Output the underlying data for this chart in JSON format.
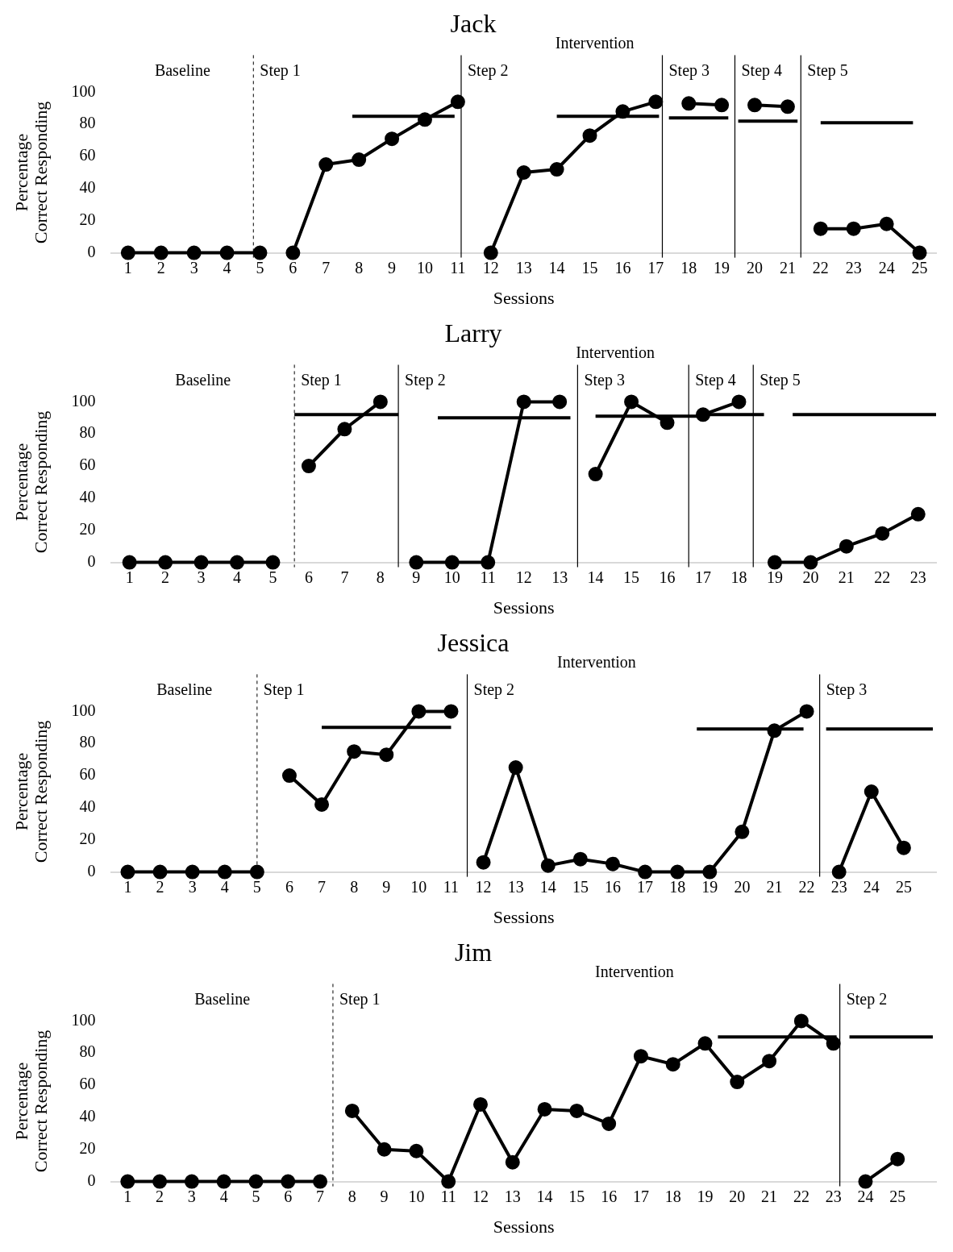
{
  "chart_data": [
    {
      "type": "line",
      "title": "Jack",
      "xlabel": "Sessions",
      "ylabel": "Percentage Correct Responding",
      "xlim": [
        0.5,
        25.5
      ],
      "xticks": [
        1,
        2,
        3,
        4,
        5,
        6,
        7,
        8,
        9,
        10,
        11,
        12,
        13,
        14,
        15,
        16,
        17,
        18,
        19,
        20,
        21,
        22,
        23,
        24,
        25
      ],
      "ylim": [
        0,
        100
      ],
      "yticks": [
        0,
        20,
        40,
        60,
        80,
        100
      ],
      "grid": false,
      "legend": false,
      "marker": "circle",
      "line_style": "solid",
      "series": [
        {
          "color": "#000000",
          "x": [
            1,
            2,
            3,
            4,
            5
          ],
          "values": [
            0,
            0,
            0,
            0,
            0
          ]
        },
        {
          "color": "#000000",
          "x": [
            6,
            7,
            8,
            9,
            10,
            11
          ],
          "values": [
            0,
            55,
            58,
            71,
            83,
            94
          ]
        },
        {
          "color": "#000000",
          "x": [
            12,
            13,
            14,
            15,
            16,
            17
          ],
          "values": [
            0,
            50,
            52,
            73,
            88,
            94
          ]
        },
        {
          "color": "#000000",
          "x": [
            18,
            19
          ],
          "values": [
            93,
            92
          ]
        },
        {
          "color": "#000000",
          "x": [
            20,
            21
          ],
          "values": [
            92,
            91
          ]
        },
        {
          "color": "#000000",
          "x": [
            22,
            23,
            24,
            25
          ],
          "values": [
            15,
            15,
            18,
            0
          ]
        },
        {
          "color": "#000000",
          "marker": "none",
          "x": [
            7.8,
            10.9
          ],
          "values": [
            85,
            85
          ]
        },
        {
          "color": "#000000",
          "marker": "none",
          "x": [
            14,
            17.1
          ],
          "values": [
            85,
            85
          ]
        },
        {
          "color": "#000000",
          "marker": "none",
          "x": [
            17.4,
            19.2
          ],
          "values": [
            84,
            84
          ]
        },
        {
          "color": "#000000",
          "marker": "none",
          "x": [
            19.5,
            21.3
          ],
          "values": [
            82,
            82
          ]
        },
        {
          "color": "#000000",
          "marker": "none",
          "x": [
            22,
            24.8
          ],
          "values": [
            81,
            81
          ]
        }
      ],
      "ref_lines": [
        {
          "axis": "x",
          "value": 4.8,
          "line_style": "dashed",
          "color": "#000000",
          "label": "Step 1"
        },
        {
          "axis": "x",
          "value": 11.1,
          "line_style": "solid",
          "color": "#000000",
          "label": "Step 2"
        },
        {
          "axis": "x",
          "value": 17.2,
          "line_style": "solid",
          "color": "#000000",
          "label": "Step 3"
        },
        {
          "axis": "x",
          "value": 19.4,
          "line_style": "solid",
          "color": "#000000",
          "label": "Step 4"
        },
        {
          "axis": "x",
          "value": 21.4,
          "line_style": "solid",
          "color": "#000000",
          "label": "Step 5"
        }
      ],
      "annotations": [
        "Baseline",
        "Intervention"
      ]
    },
    {
      "type": "line",
      "title": "Larry",
      "xlabel": "Sessions",
      "ylabel": "Percentage Correct Responding",
      "xlim": [
        0.5,
        23.5
      ],
      "xticks": [
        1,
        2,
        3,
        4,
        5,
        6,
        7,
        8,
        9,
        10,
        11,
        12,
        13,
        14,
        15,
        16,
        17,
        18,
        19,
        20,
        21,
        22,
        23
      ],
      "ylim": [
        0,
        100
      ],
      "yticks": [
        0,
        20,
        40,
        60,
        80,
        100
      ],
      "grid": false,
      "legend": false,
      "marker": "circle",
      "line_style": "solid",
      "series": [
        {
          "color": "#000000",
          "x": [
            1,
            2,
            3,
            4,
            5
          ],
          "values": [
            0,
            0,
            0,
            0,
            0
          ]
        },
        {
          "color": "#000000",
          "x": [
            6,
            7,
            8
          ],
          "values": [
            60,
            83,
            100
          ]
        },
        {
          "color": "#000000",
          "x": [
            9,
            10,
            11,
            12,
            13
          ],
          "values": [
            0,
            0,
            0,
            100,
            100
          ]
        },
        {
          "color": "#000000",
          "x": [
            14,
            15,
            16
          ],
          "values": [
            55,
            100,
            87
          ]
        },
        {
          "color": "#000000",
          "x": [
            17,
            18
          ],
          "values": [
            92,
            100
          ]
        },
        {
          "color": "#000000",
          "x": [
            19,
            20,
            21,
            22,
            23
          ],
          "values": [
            0,
            0,
            10,
            18,
            30
          ]
        },
        {
          "color": "#000000",
          "marker": "none",
          "x": [
            5.6,
            8.5
          ],
          "values": [
            92,
            92
          ]
        },
        {
          "color": "#000000",
          "marker": "none",
          "x": [
            9.6,
            13.3
          ],
          "values": [
            90,
            90
          ]
        },
        {
          "color": "#000000",
          "marker": "none",
          "x": [
            14,
            16.9
          ],
          "values": [
            91,
            91
          ]
        },
        {
          "color": "#000000",
          "marker": "none",
          "x": [
            17.1,
            18.7
          ],
          "values": [
            92,
            92
          ]
        },
        {
          "color": "#000000",
          "marker": "none",
          "x": [
            19.5,
            23.5
          ],
          "values": [
            92,
            92
          ]
        }
      ],
      "ref_lines": [
        {
          "axis": "x",
          "value": 5.6,
          "line_style": "dashed",
          "color": "#000000",
          "label": "Step 1"
        },
        {
          "axis": "x",
          "value": 8.5,
          "line_style": "solid",
          "color": "#000000",
          "label": "Step 2"
        },
        {
          "axis": "x",
          "value": 13.5,
          "line_style": "solid",
          "color": "#000000",
          "label": "Step 3"
        },
        {
          "axis": "x",
          "value": 16.6,
          "line_style": "solid",
          "color": "#000000",
          "label": "Step 4"
        },
        {
          "axis": "x",
          "value": 18.4,
          "line_style": "solid",
          "color": "#000000",
          "label": "Step 5"
        }
      ],
      "annotations": [
        "Baseline",
        "Intervention"
      ]
    },
    {
      "type": "line",
      "title": "Jessica",
      "xlabel": "Sessions",
      "ylabel": "Percentage Correct Responding",
      "xlim": [
        0.5,
        26
      ],
      "xticks": [
        1,
        2,
        3,
        4,
        5,
        6,
        7,
        8,
        9,
        10,
        11,
        12,
        13,
        14,
        15,
        16,
        17,
        18,
        19,
        20,
        21,
        22,
        23,
        24,
        25
      ],
      "ylim": [
        0,
        100
      ],
      "yticks": [
        0,
        20,
        40,
        60,
        80,
        100
      ],
      "grid": false,
      "legend": false,
      "marker": "circle",
      "line_style": "solid",
      "series": [
        {
          "color": "#000000",
          "x": [
            1,
            2,
            3,
            4,
            5
          ],
          "values": [
            0,
            0,
            0,
            0,
            0
          ]
        },
        {
          "color": "#000000",
          "x": [
            6,
            7,
            8,
            9,
            10,
            11
          ],
          "values": [
            60,
            42,
            75,
            73,
            100,
            100
          ]
        },
        {
          "color": "#000000",
          "x": [
            12,
            13,
            14,
            15,
            16,
            17,
            18,
            19,
            20,
            21,
            22
          ],
          "values": [
            6,
            65,
            4,
            8,
            5,
            0,
            0,
            0,
            25,
            88,
            100
          ]
        },
        {
          "color": "#000000",
          "x": [
            23,
            24,
            25
          ],
          "values": [
            0,
            50,
            15
          ]
        },
        {
          "color": "#000000",
          "marker": "none",
          "x": [
            7,
            11
          ],
          "values": [
            90,
            90
          ]
        },
        {
          "color": "#000000",
          "marker": "none",
          "x": [
            18.6,
            21.9
          ],
          "values": [
            89,
            89
          ]
        },
        {
          "color": "#000000",
          "marker": "none",
          "x": [
            22.6,
            25.9
          ],
          "values": [
            89,
            89
          ]
        }
      ],
      "ref_lines": [
        {
          "axis": "x",
          "value": 5,
          "line_style": "dashed",
          "color": "#000000",
          "label": "Step 1"
        },
        {
          "axis": "x",
          "value": 11.5,
          "line_style": "solid",
          "color": "#000000",
          "label": "Step 2"
        },
        {
          "axis": "x",
          "value": 22.4,
          "line_style": "solid",
          "color": "#000000",
          "label": "Step 3"
        }
      ],
      "annotations": [
        "Baseline",
        "Intervention"
      ]
    },
    {
      "type": "line",
      "title": "Jim",
      "xlabel": "Sessions",
      "ylabel": "Percentage Correct Responding",
      "xlim": [
        0.5,
        26.2
      ],
      "xticks": [
        1,
        2,
        3,
        4,
        5,
        6,
        7,
        8,
        9,
        10,
        11,
        12,
        13,
        14,
        15,
        16,
        17,
        18,
        19,
        20,
        21,
        22,
        23,
        24,
        25
      ],
      "ylim": [
        0,
        100
      ],
      "yticks": [
        0,
        20,
        40,
        60,
        80,
        100
      ],
      "grid": false,
      "legend": false,
      "marker": "circle",
      "line_style": "solid",
      "series": [
        {
          "color": "#000000",
          "x": [
            1,
            2,
            3,
            4,
            5,
            6,
            7
          ],
          "values": [
            0,
            0,
            0,
            0,
            0,
            0,
            0
          ]
        },
        {
          "color": "#000000",
          "x": [
            8,
            9,
            10,
            11,
            12,
            13,
            14,
            15,
            16,
            17,
            18,
            19,
            20,
            21,
            22,
            23
          ],
          "values": [
            44,
            20,
            19,
            0,
            48,
            12,
            45,
            44,
            36,
            78,
            73,
            86,
            62,
            75,
            100,
            86
          ]
        },
        {
          "color": "#000000",
          "x": [
            24,
            25
          ],
          "values": [
            0,
            14
          ]
        },
        {
          "color": "#000000",
          "marker": "none",
          "x": [
            19.4,
            23.1
          ],
          "values": [
            90,
            90
          ]
        },
        {
          "color": "#000000",
          "marker": "none",
          "x": [
            23.5,
            26.1
          ],
          "values": [
            90,
            90
          ]
        }
      ],
      "ref_lines": [
        {
          "axis": "x",
          "value": 7.4,
          "line_style": "dashed",
          "color": "#000000",
          "label": "Step 1"
        },
        {
          "axis": "x",
          "value": 23.2,
          "line_style": "solid",
          "color": "#000000",
          "label": "Step 2"
        }
      ],
      "annotations": [
        "Baseline",
        "Intervention"
      ]
    }
  ]
}
